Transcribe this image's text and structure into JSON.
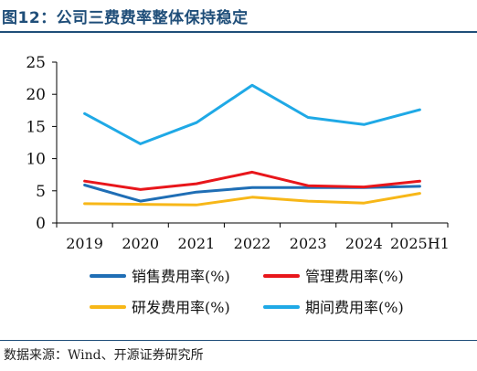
{
  "header": {
    "title": "图12：公司三费费率整体保持稳定"
  },
  "footer": {
    "source": "数据来源：Wind、开源证券研究所"
  },
  "chart_data": {
    "type": "line",
    "categories": [
      "2019",
      "2020",
      "2021",
      "2022",
      "2023",
      "2024",
      "2025H1"
    ],
    "ylim": [
      0,
      25
    ],
    "yticks": [
      0,
      5,
      10,
      15,
      20,
      25
    ],
    "grid": false,
    "legend_position": "bottom",
    "series": [
      {
        "name": "销售费用率(%)",
        "color": "#1f6eb5",
        "values": [
          5.9,
          3.4,
          4.8,
          5.5,
          5.5,
          5.5,
          5.7
        ]
      },
      {
        "name": "管理费用率(%)",
        "color": "#e8161b",
        "values": [
          6.5,
          5.2,
          6.1,
          7.9,
          5.8,
          5.6,
          6.5
        ]
      },
      {
        "name": "研发费用率(%)",
        "color": "#f7b718",
        "values": [
          3.0,
          2.9,
          2.8,
          4.0,
          3.4,
          3.1,
          4.6
        ]
      },
      {
        "name": "期间费用率(%)",
        "color": "#1fa9e6",
        "values": [
          17.0,
          12.3,
          15.6,
          21.4,
          16.4,
          15.3,
          17.6
        ]
      }
    ]
  }
}
